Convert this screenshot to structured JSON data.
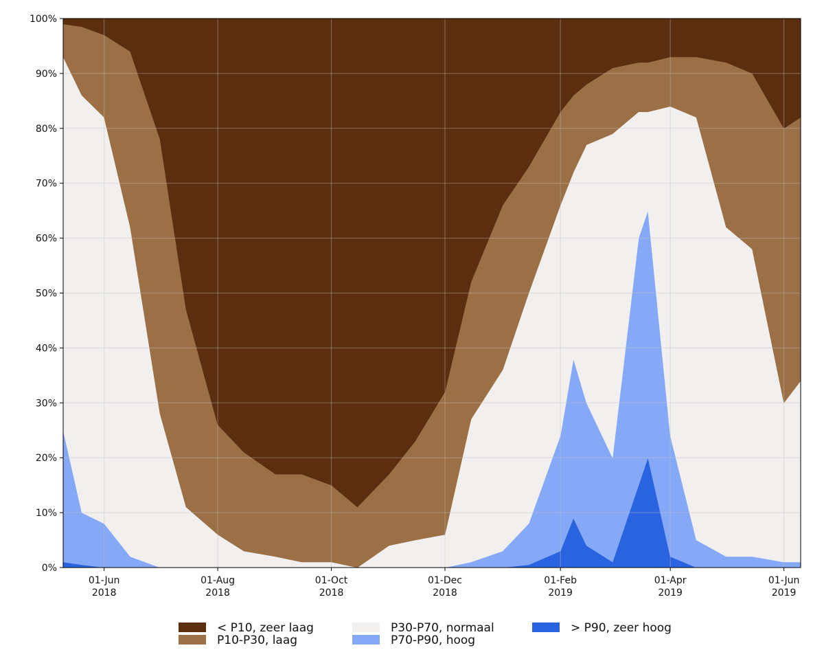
{
  "chart_data": {
    "type": "stacked-area",
    "x": [
      "2018-05-10",
      "2018-05-20",
      "2018-06-01",
      "2018-06-15",
      "2018-07-01",
      "2018-07-15",
      "2018-08-01",
      "2018-08-15",
      "2018-09-01",
      "2018-09-15",
      "2018-10-01",
      "2018-10-15",
      "2018-11-01",
      "2018-11-15",
      "2018-12-01",
      "2018-12-15",
      "2019-01-01",
      "2019-01-15",
      "2019-02-01",
      "2019-02-08",
      "2019-02-15",
      "2019-03-01",
      "2019-03-15",
      "2019-03-20",
      "2019-04-01",
      "2019-04-15",
      "2019-05-01",
      "2019-05-15",
      "2019-06-01",
      "2019-06-10"
    ],
    "series": [
      {
        "name": "< P10, zeer laag",
        "color": "#5a2e0e",
        "values": [
          1,
          1.5,
          3,
          6,
          22,
          53,
          74,
          79,
          83,
          83,
          85,
          89,
          83,
          77,
          68,
          48,
          34,
          27,
          17,
          14,
          12,
          9,
          8,
          8,
          7,
          7,
          8,
          10,
          20,
          18
        ]
      },
      {
        "name": "P10-P30, laag",
        "color": "#9c7046",
        "values": [
          6,
          12.5,
          15,
          32,
          50,
          36,
          20,
          18,
          15,
          16,
          14,
          11,
          13,
          18,
          26,
          25,
          30,
          23,
          17,
          14,
          11,
          12,
          9,
          9,
          9,
          11,
          30,
          32,
          50,
          48
        ]
      },
      {
        "name": "P30-P70, normaal",
        "color": "#f2f0ef",
        "values": [
          68,
          76,
          74,
          60,
          28,
          11,
          6,
          3,
          2,
          1,
          1,
          0,
          4,
          5,
          6,
          26,
          33,
          42,
          42,
          34,
          47,
          59,
          23,
          18,
          60,
          77,
          60,
          56,
          29,
          33
        ]
      },
      {
        "name": "P70-P90, hoog",
        "color": "#85a9f7",
        "values": [
          24,
          9.5,
          8,
          2,
          0,
          0,
          0,
          0,
          0,
          0,
          0,
          0,
          0,
          0,
          0,
          1,
          3,
          7.5,
          21,
          29,
          26,
          19,
          45,
          45,
          22,
          5,
          2,
          2,
          1,
          1
        ]
      },
      {
        "name": "> P90, zeer hoog",
        "color": "#2a63e0",
        "values": [
          1,
          0.5,
          0,
          0,
          0,
          0,
          0,
          0,
          0,
          0,
          0,
          0,
          0,
          0,
          0,
          0,
          0,
          0.5,
          3,
          9,
          4,
          1,
          15,
          20,
          2,
          0,
          0,
          0,
          0,
          0
        ]
      }
    ],
    "xlim": [
      "2018-05-10",
      "2019-06-10"
    ],
    "xticks": [
      {
        "value": "2018-06-01",
        "label": "01-Jun\n2018"
      },
      {
        "value": "2018-08-01",
        "label": "01-Aug\n2018"
      },
      {
        "value": "2018-10-01",
        "label": "01-Oct\n2018"
      },
      {
        "value": "2018-12-01",
        "label": "01-Dec\n2018"
      },
      {
        "value": "2019-02-01",
        "label": "01-Feb\n2019"
      },
      {
        "value": "2019-04-01",
        "label": "01-Apr\n2019"
      },
      {
        "value": "2019-06-01",
        "label": "01-Jun\n2019"
      }
    ],
    "ylim": [
      0,
      100
    ],
    "yticks": [
      {
        "value": 0,
        "label": "0%"
      },
      {
        "value": 10,
        "label": "10%"
      },
      {
        "value": 20,
        "label": "20%"
      },
      {
        "value": 30,
        "label": "30%"
      },
      {
        "value": 40,
        "label": "40%"
      },
      {
        "value": 50,
        "label": "50%"
      },
      {
        "value": 60,
        "label": "60%"
      },
      {
        "value": 70,
        "label": "70%"
      },
      {
        "value": 80,
        "label": "80%"
      },
      {
        "value": 90,
        "label": "90%"
      },
      {
        "value": 100,
        "label": "100%"
      }
    ],
    "grid": true
  }
}
